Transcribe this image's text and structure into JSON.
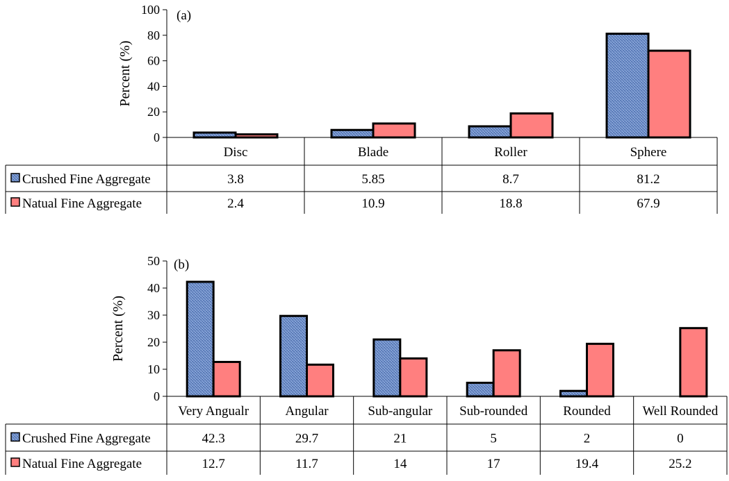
{
  "colors": {
    "crushed": "#6f8fc9",
    "crushed_texture": "#4a6aa8",
    "natural": "#ff7f7f",
    "border": "#000000"
  },
  "chart_data": [
    {
      "type": "bar",
      "panel_label": "(a)",
      "title": "",
      "xlabel": "",
      "ylabel": "Percent (%)",
      "ylim": [
        0,
        100
      ],
      "yticks": [
        0,
        20,
        40,
        60,
        80,
        100
      ],
      "categories": [
        "Disc",
        "Blade",
        "Roller",
        "Sphere"
      ],
      "series": [
        {
          "name": "Crushed Fine Aggregate",
          "values": [
            3.8,
            5.85,
            8.7,
            81.2
          ],
          "labels": [
            "3.8",
            "5.85",
            "8.7",
            "81.2"
          ]
        },
        {
          "name": "Natual Fine Aggregate",
          "values": [
            2.4,
            10.9,
            18.8,
            67.9
          ],
          "labels": [
            "2.4",
            "10.9",
            "18.8",
            "67.9"
          ]
        }
      ],
      "legend": "data-table"
    },
    {
      "type": "bar",
      "panel_label": "(b)",
      "title": "",
      "xlabel": "",
      "ylabel": "Percent (%)",
      "ylim": [
        0,
        50
      ],
      "yticks": [
        0,
        10,
        20,
        30,
        40,
        50
      ],
      "categories": [
        "Very Angualr",
        "Angular",
        "Sub-angular",
        "Sub-rounded",
        "Rounded",
        "Well Rounded"
      ],
      "series": [
        {
          "name": "Crushed Fine Aggregate",
          "values": [
            42.3,
            29.7,
            21,
            5,
            2,
            0
          ],
          "labels": [
            "42.3",
            "29.7",
            "21",
            "5",
            "2",
            "0"
          ]
        },
        {
          "name": "Natual Fine Aggregate",
          "values": [
            12.7,
            11.7,
            14,
            17,
            19.4,
            25.2
          ],
          "labels": [
            "12.7",
            "11.7",
            "14",
            "17",
            "19.4",
            "25.2"
          ]
        }
      ],
      "legend": "data-table"
    }
  ]
}
